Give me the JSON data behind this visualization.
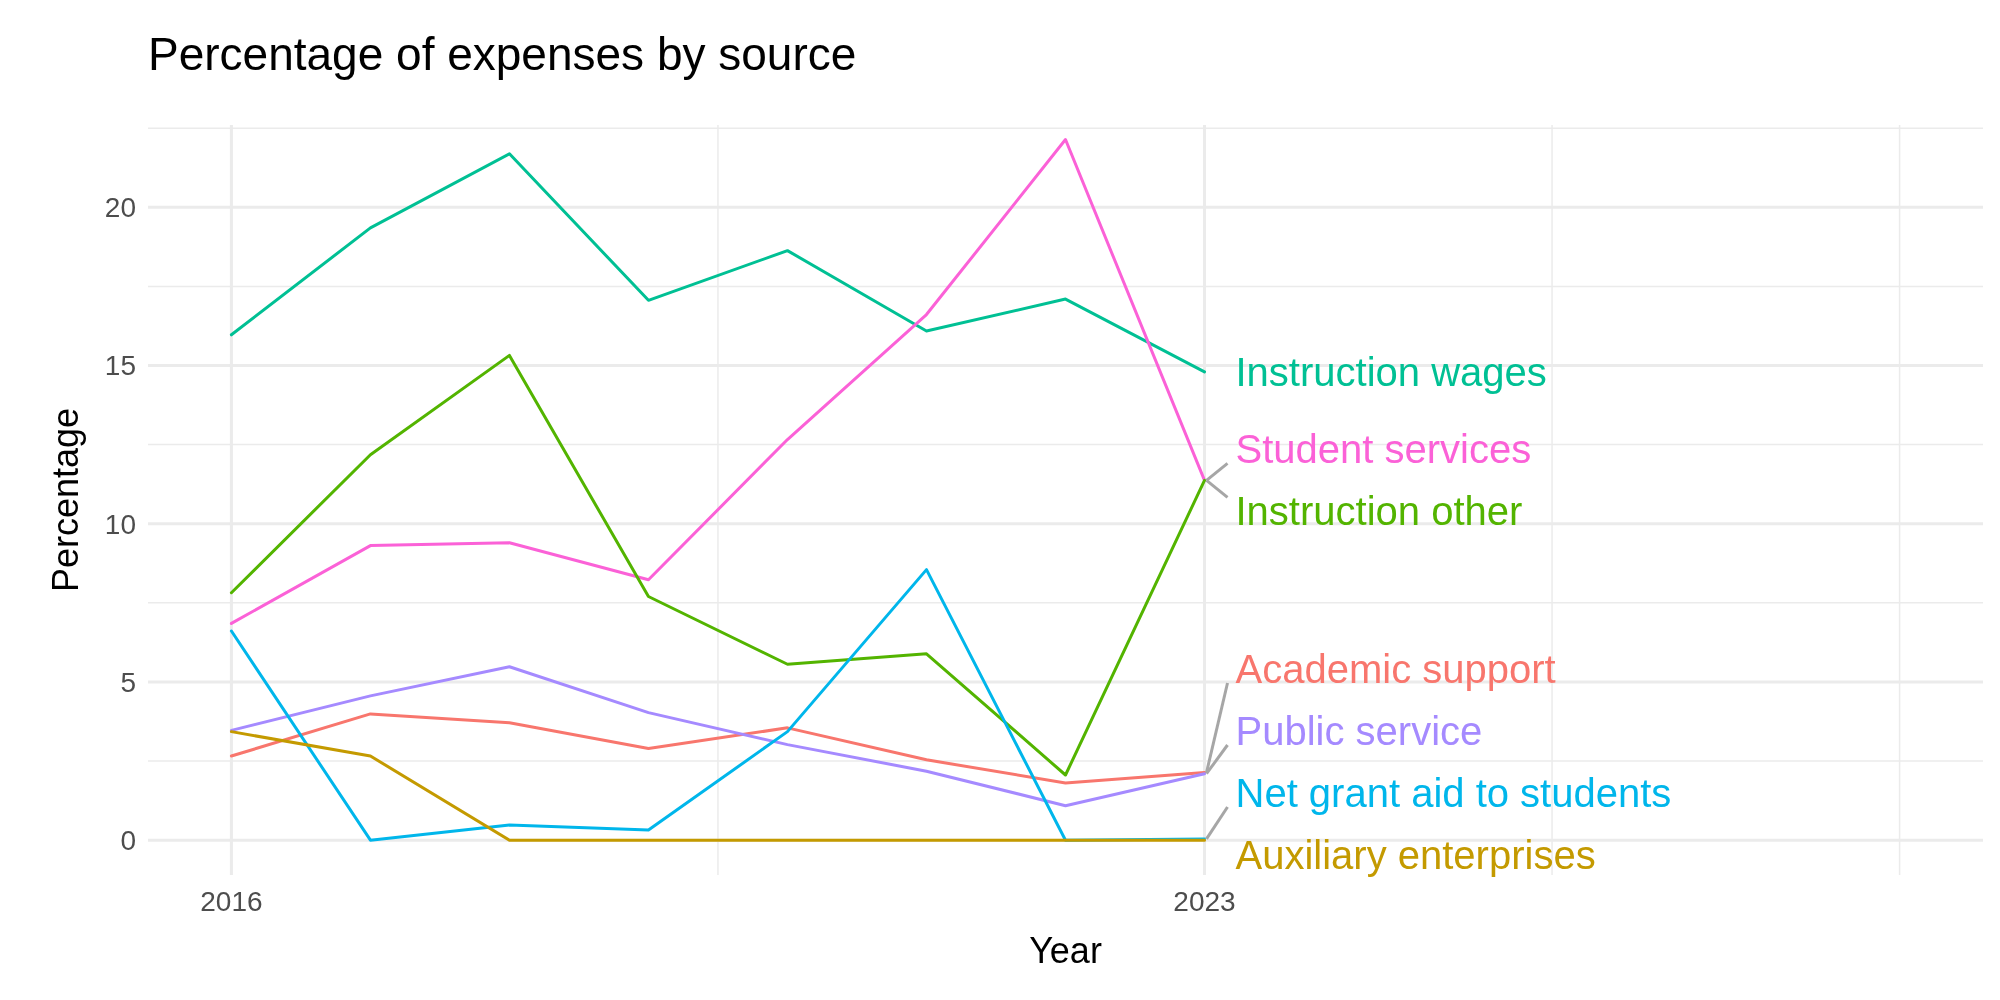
{
  "chart_data": {
    "type": "line",
    "title": "Percentage of expenses by source",
    "xlabel": "Year",
    "ylabel": "Percentage",
    "x": [
      2016,
      2017,
      2018,
      2019,
      2020,
      2021,
      2022,
      2023
    ],
    "xlim": [
      2015.4,
      2028.6
    ],
    "xticks": [
      2016,
      {
        "value": 2019.5,
        "label": null
      },
      2023,
      {
        "value": 2025.5,
        "label": null
      },
      {
        "value": 2028,
        "label": null
      }
    ],
    "ylim": [
      -1.1,
      22.6
    ],
    "yticks": [
      0,
      {
        "value": 2.5,
        "label": null
      },
      5,
      {
        "value": 7.5,
        "label": null
      },
      10,
      {
        "value": 12.5,
        "label": null
      },
      15,
      {
        "value": 17.5,
        "label": null
      },
      20,
      {
        "value": 22.5,
        "label": null
      }
    ],
    "grid": true,
    "line_style": "solid",
    "marker": "none",
    "series": [
      {
        "name": "Instruction wages",
        "color": "#00c094",
        "values": [
          15.97,
          19.35,
          21.69,
          17.06,
          18.63,
          16.09,
          17.1,
          14.8
        ]
      },
      {
        "name": "Student services",
        "color": "#fb61d7",
        "values": [
          6.85,
          9.31,
          9.4,
          8.23,
          12.66,
          16.61,
          22.14,
          11.37
        ]
      },
      {
        "name": "Instruction other",
        "color": "#53b400",
        "values": [
          7.82,
          12.18,
          15.32,
          7.7,
          5.56,
          5.89,
          2.06,
          11.37
        ]
      },
      {
        "name": "Academic support",
        "color": "#f8766d",
        "values": [
          2.66,
          3.99,
          3.71,
          2.9,
          3.55,
          2.54,
          1.81,
          2.14
        ]
      },
      {
        "name": "Public service",
        "color": "#a58aff",
        "values": [
          3.47,
          4.56,
          5.48,
          4.03,
          3.02,
          2.18,
          1.09,
          2.1
        ]
      },
      {
        "name": "Net grant aid to students",
        "color": "#00b6eb",
        "values": [
          6.61,
          0,
          0.48,
          0.32,
          3.43,
          8.55,
          0,
          0.04
        ]
      },
      {
        "name": "Auxiliary enterprises",
        "color": "#c49a00",
        "values": [
          3.43,
          2.66,
          0,
          0,
          0,
          0,
          0,
          0
        ]
      }
    ]
  }
}
